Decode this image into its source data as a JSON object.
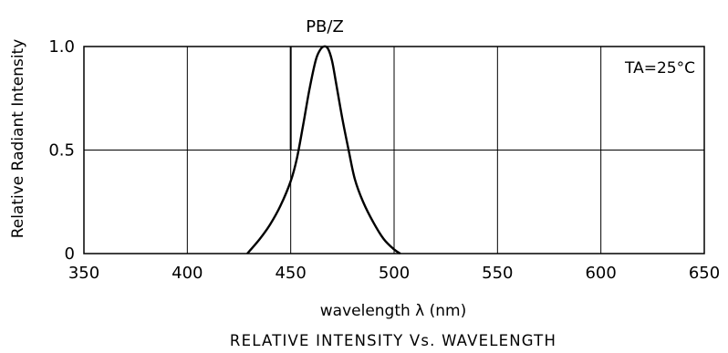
{
  "chart_data": {
    "type": "line",
    "series_label": "PB/Z",
    "annotation": "TA=25°C",
    "ylabel": "Relative Radiant Intensity",
    "xlabel": "wavelength λ (nm)",
    "title": "RELATIVE INTENSITY Vs. WAVELENGTH",
    "xlim": [
      350,
      650
    ],
    "ylim": [
      0,
      1.0
    ],
    "x_ticks": [
      350,
      400,
      450,
      500,
      550,
      600,
      650
    ],
    "y_ticks": [
      {
        "value": 0,
        "label": "0"
      },
      {
        "value": 0.5,
        "label": "0.5"
      },
      {
        "value": 1.0,
        "label": "1.0"
      }
    ],
    "grid": true,
    "marker_line": {
      "x": 450,
      "y_from": 0.5,
      "y_to": 1.0
    },
    "series": [
      {
        "x": [
          429,
          435,
          440,
          445,
          450,
          453,
          456,
          459,
          462,
          464,
          466,
          468,
          470,
          472,
          475,
          478,
          481,
          485,
          490,
          495,
          500,
          503
        ],
        "values": [
          0,
          0.07,
          0.14,
          0.23,
          0.35,
          0.46,
          0.62,
          0.79,
          0.93,
          0.98,
          1.0,
          0.99,
          0.93,
          0.82,
          0.65,
          0.5,
          0.36,
          0.25,
          0.15,
          0.07,
          0.02,
          0
        ]
      }
    ]
  }
}
